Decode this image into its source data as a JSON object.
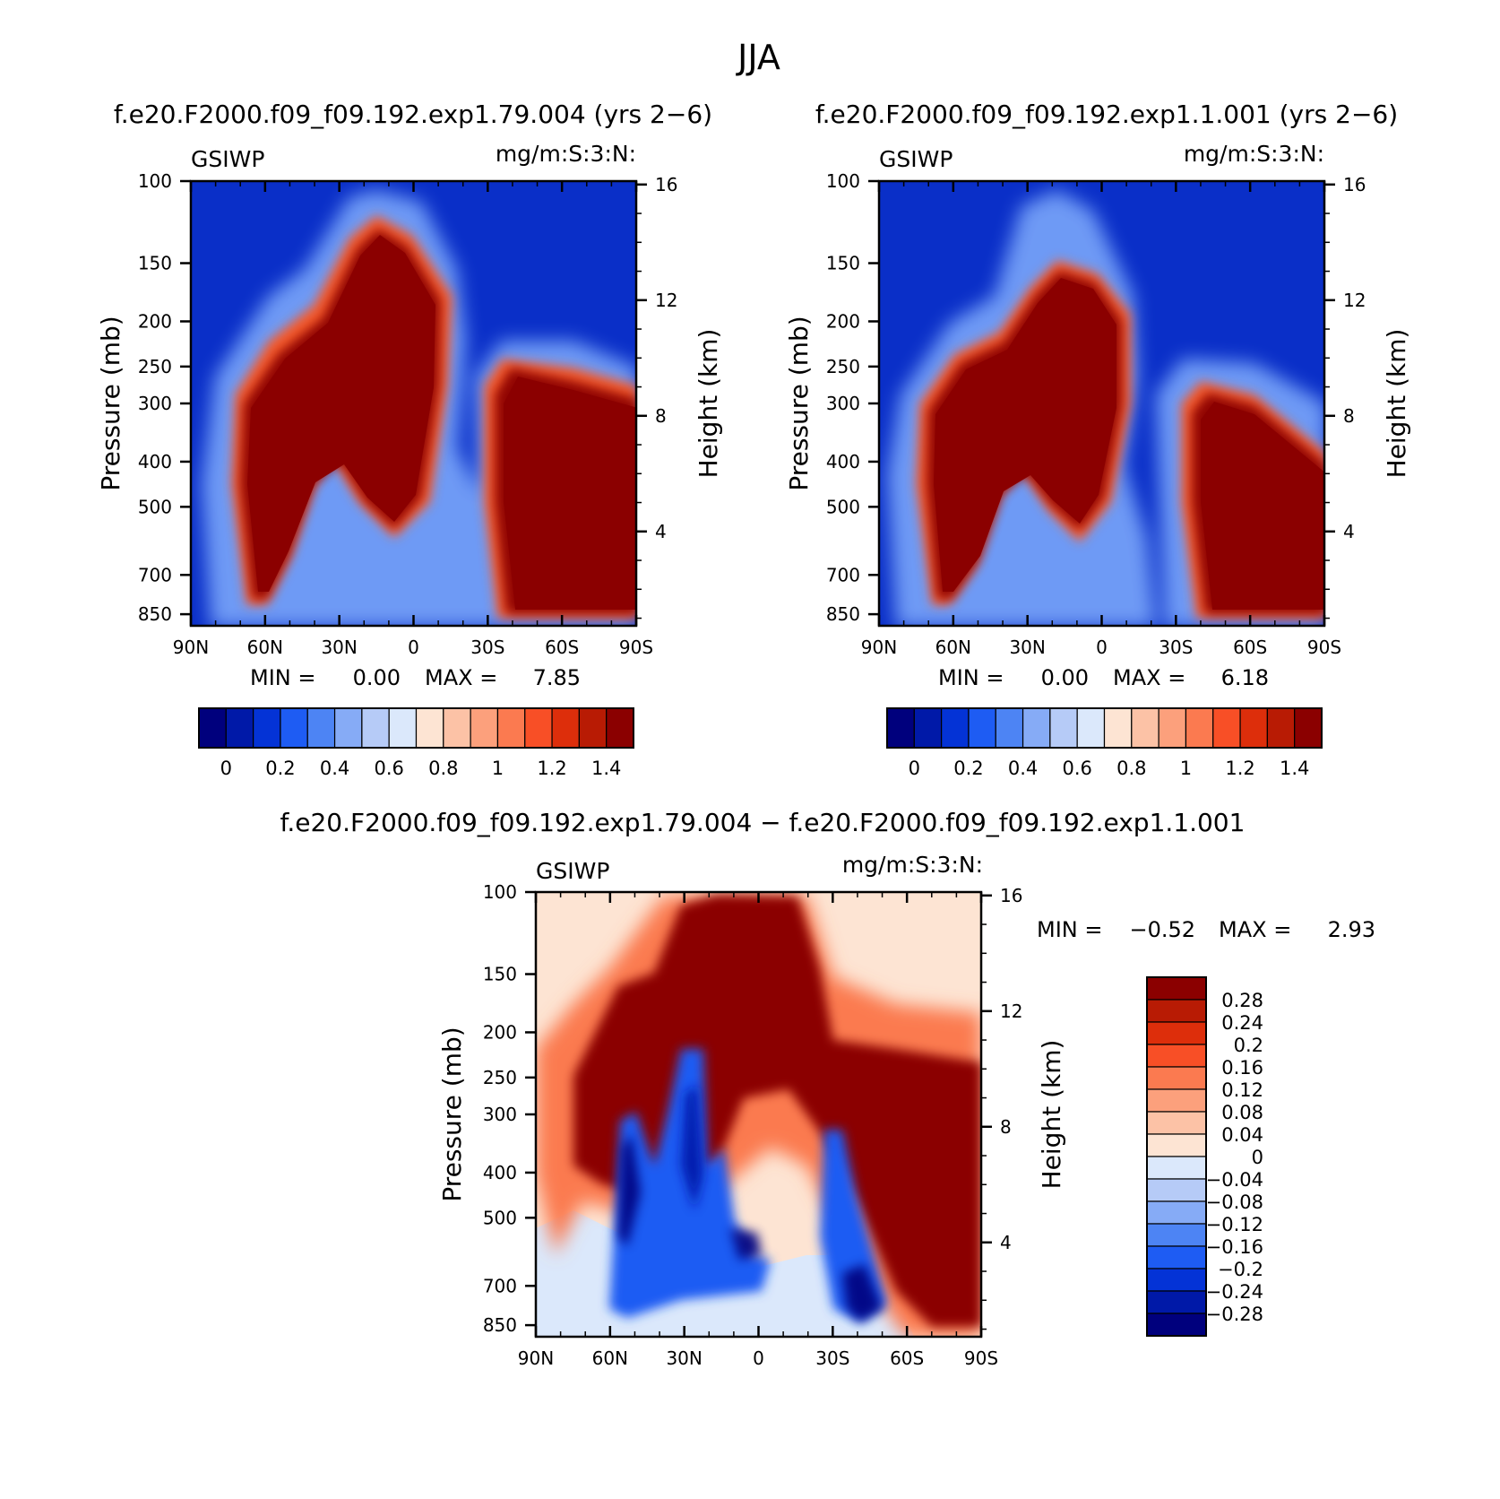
{
  "title": "JJA",
  "colors": {
    "seq_palette": [
      "#00007d",
      "#0019a8",
      "#0433d6",
      "#1e5cf3",
      "#4d84f4",
      "#86abf6",
      "#b6cbf7",
      "#dbe8fb",
      "#fde4d3",
      "#fcc2a6",
      "#fca07c",
      "#fb7a50",
      "#f84f26",
      "#dd2e0b",
      "#b81b04",
      "#8b0000"
    ],
    "diff_palette": [
      "#00007d",
      "#0019a8",
      "#0433d6",
      "#1e5cf3",
      "#4d84f4",
      "#86abf6",
      "#b6cbf7",
      "#dbe8fb",
      "#fde4d3",
      "#fcc2a6",
      "#fca07c",
      "#fb7a50",
      "#f84f26",
      "#dd2e0b",
      "#b81b04",
      "#8b0000"
    ]
  },
  "panels": [
    {
      "case_title": "f.e20.F2000.f09_f09.192.exp1.79.004 (yrs 2−6)",
      "left_label": "GSIWP",
      "right_label": "mg/m:S:3:N:",
      "y_label": "Pressure (mb)",
      "y2_label": "Height (km)",
      "min_label": "MIN =",
      "min_value": "0.00",
      "max_label": "MAX =",
      "max_value": "7.85"
    },
    {
      "case_title": "f.e20.F2000.f09_f09.192.exp1.1.001 (yrs 2−6)",
      "left_label": "GSIWP",
      "right_label": "mg/m:S:3:N:",
      "y_label": "Pressure (mb)",
      "y2_label": "Height (km)",
      "min_label": "MIN =",
      "min_value": "0.00",
      "max_label": "MAX =",
      "max_value": "6.18"
    },
    {
      "case_title": "f.e20.F2000.f09_f09.192.exp1.79.004 − f.e20.F2000.f09_f09.192.exp1.1.001",
      "left_label": "GSIWP",
      "right_label": "mg/m:S:3:N:",
      "y_label": "Pressure (mb)",
      "y2_label": "Height (km)",
      "min_label": "MIN =",
      "min_value": "−0.52",
      "max_label": "MAX =",
      "max_value": "2.93"
    }
  ],
  "x_ticks": [
    "90N",
    "60N",
    "30N",
    "0",
    "30S",
    "60S",
    "90S"
  ],
  "p_ticks": [
    "100",
    "150",
    "200",
    "250",
    "300",
    "400",
    "500",
    "700",
    "850"
  ],
  "h_ticks": [
    "16",
    "12",
    "8",
    "4"
  ],
  "seq_colorbar_labels": [
    "0",
    "0.2",
    "0.4",
    "0.6",
    "0.8",
    "1",
    "1.2",
    "1.4"
  ],
  "diff_colorbar_labels": [
    "0.28",
    "0.24",
    "0.2",
    "0.16",
    "0.12",
    "0.08",
    "0.04",
    "0",
    "−0.04",
    "−0.08",
    "−0.12",
    "−0.16",
    "−0.2",
    "−0.24",
    "−0.28"
  ],
  "chart_data": [
    {
      "type": "heatmap",
      "variable": "GSIWP",
      "units": "mg/m:S:3:N:",
      "title": "f.e20.F2000.f09_f09.192.exp1.79.004 (yrs 2-6)",
      "x": [
        90,
        60,
        30,
        0,
        -30,
        -60,
        -90
      ],
      "x_tick_labels": [
        "90N",
        "60N",
        "30N",
        "0",
        "30S",
        "60S",
        "90S"
      ],
      "xlabel": "",
      "ylabel": "Pressure (mb)",
      "y2label": "Height (km)",
      "y_ticks": [
        100,
        150,
        200,
        250,
        300,
        400,
        500,
        700,
        850
      ],
      "y2_ticks": [
        16,
        12,
        8,
        4
      ],
      "ylim": [
        900,
        100
      ],
      "levels": [
        -0.1,
        0,
        0.1,
        0.2,
        0.3,
        0.4,
        0.5,
        0.6,
        0.7,
        0.8,
        0.9,
        1.0,
        1.1,
        1.2,
        1.3,
        1.4
      ],
      "min": 0.0,
      "max": 7.85
    },
    {
      "type": "heatmap",
      "variable": "GSIWP",
      "units": "mg/m:S:3:N:",
      "title": "f.e20.F2000.f09_f09.192.exp1.1.001 (yrs 2-6)",
      "x": [
        90,
        60,
        30,
        0,
        -30,
        -60,
        -90
      ],
      "x_tick_labels": [
        "90N",
        "60N",
        "30N",
        "0",
        "30S",
        "60S",
        "90S"
      ],
      "ylabel": "Pressure (mb)",
      "y2label": "Height (km)",
      "y_ticks": [
        100,
        150,
        200,
        250,
        300,
        400,
        500,
        700,
        850
      ],
      "y2_ticks": [
        16,
        12,
        8,
        4
      ],
      "ylim": [
        900,
        100
      ],
      "levels": [
        -0.1,
        0,
        0.1,
        0.2,
        0.3,
        0.4,
        0.5,
        0.6,
        0.7,
        0.8,
        0.9,
        1.0,
        1.1,
        1.2,
        1.3,
        1.4
      ],
      "min": 0.0,
      "max": 6.18
    },
    {
      "type": "heatmap",
      "variable": "GSIWP",
      "units": "mg/m:S:3:N:",
      "title": "f.e20.F2000.f09_f09.192.exp1.79.004 - f.e20.F2000.f09_f09.192.exp1.1.001",
      "x": [
        90,
        60,
        30,
        0,
        -30,
        -60,
        -90
      ],
      "x_tick_labels": [
        "90N",
        "60N",
        "30N",
        "0",
        "30S",
        "60S",
        "90S"
      ],
      "ylabel": "Pressure (mb)",
      "y2label": "Height (km)",
      "y_ticks": [
        100,
        150,
        200,
        250,
        300,
        400,
        500,
        700,
        850
      ],
      "y2_ticks": [
        16,
        12,
        8,
        4
      ],
      "ylim": [
        900,
        100
      ],
      "levels": [
        -0.28,
        -0.24,
        -0.2,
        -0.16,
        -0.12,
        -0.08,
        -0.04,
        0,
        0.04,
        0.08,
        0.12,
        0.16,
        0.2,
        0.24,
        0.28
      ],
      "min": -0.52,
      "max": 2.93
    }
  ]
}
